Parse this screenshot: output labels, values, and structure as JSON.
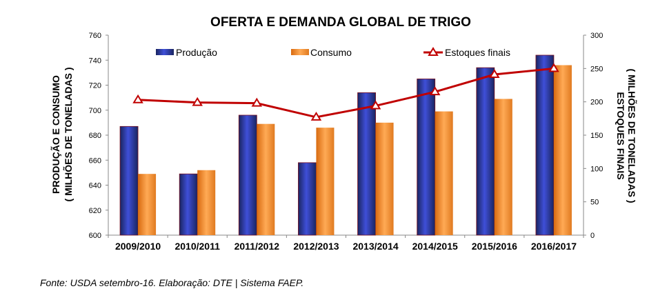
{
  "chart_data": {
    "type": "bar+line",
    "title": "OFERTA E DEMANDA GLOBAL DE TRIGO",
    "ylabel_left": [
      "PRODUÇÃO E CONSUMO",
      "( MILHÕES DE TONELADAS )"
    ],
    "ylabel_right": [
      "ESTOQUES FINAIS",
      "( MILHÕES DE TONELADAS )"
    ],
    "categories": [
      "2009/2010",
      "2010/2011",
      "2011/2012",
      "2012/2013",
      "2013/2014",
      "2014/2015",
      "2015/2016",
      "2016/2017"
    ],
    "ylim_left": [
      600,
      760
    ],
    "yticks_left": [
      "600",
      "620",
      "640",
      "660",
      "680",
      "700",
      "720",
      "740",
      "760"
    ],
    "ylim_right": [
      0,
      300
    ],
    "yticks_right": [
      "0",
      "50",
      "100",
      "150",
      "200",
      "250",
      "300"
    ],
    "grid": false,
    "legend_position": "top",
    "series": [
      {
        "name": "Produção",
        "kind": "bar",
        "axis": "left",
        "color": "#2a3aa8",
        "values": [
          687,
          649,
          696,
          658,
          714,
          725,
          734,
          744
        ]
      },
      {
        "name": "Consumo",
        "kind": "bar",
        "axis": "left",
        "color": "#f0922e",
        "values": [
          649,
          652,
          689,
          686,
          690,
          699,
          709,
          736
        ]
      },
      {
        "name": "Estoques finais",
        "kind": "line",
        "axis": "right",
        "color": "#c00000",
        "marker": "triangle-open",
        "values": [
          203,
          199,
          198,
          177,
          194,
          215,
          241,
          250
        ]
      }
    ]
  },
  "source": "Fonte: USDA setembro-16. Elaboração: DTE | Sistema FAEP."
}
